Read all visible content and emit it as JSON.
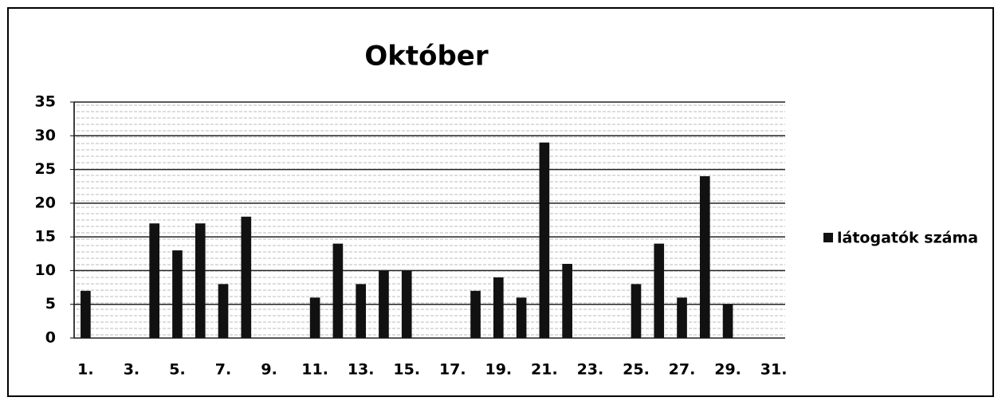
{
  "chart_data": {
    "type": "bar",
    "title": "Október",
    "categories": [
      "1.",
      null,
      "3.",
      null,
      "5.",
      null,
      "7.",
      null,
      "9.",
      null,
      "11.",
      null,
      "13.",
      null,
      "15.",
      null,
      "17.",
      null,
      "19.",
      null,
      "21.",
      null,
      "23.",
      null,
      "25.",
      null,
      "27.",
      null,
      "29.",
      null,
      "31."
    ],
    "series": [
      {
        "name": "látogatók száma",
        "color": "#111111",
        "values": [
          7,
          0,
          0,
          17,
          13,
          17,
          8,
          18,
          0,
          0,
          6,
          14,
          8,
          10,
          10,
          0,
          0,
          7,
          9,
          6,
          29,
          11,
          0,
          0,
          8,
          14,
          6,
          24,
          5,
          0,
          0
        ]
      }
    ],
    "ylim": [
      0,
      35
    ],
    "yticks": [
      0,
      5,
      10,
      15,
      20,
      25,
      30,
      35
    ],
    "grid": true,
    "legend": "right"
  }
}
